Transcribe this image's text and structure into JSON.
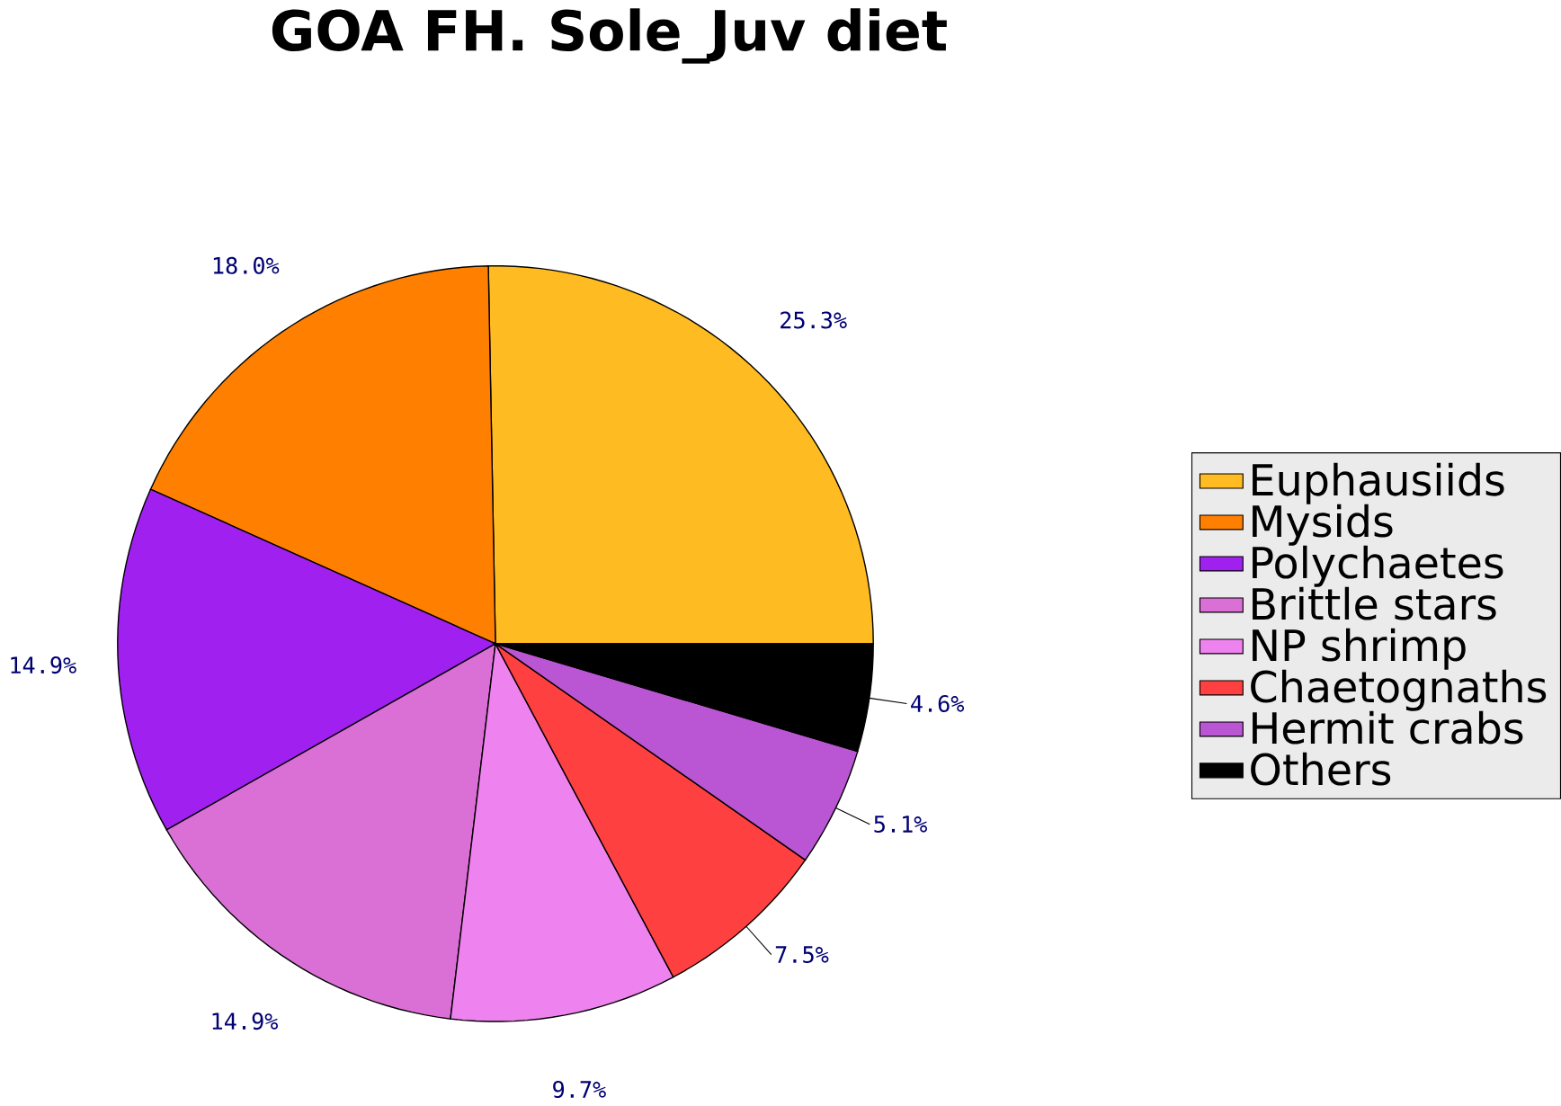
{
  "chart_data": {
    "type": "pie",
    "title": "GOA FH. Sole_Juv diet",
    "categories": [
      "Euphausiids",
      "Mysids",
      "Polychaetes",
      "Brittle stars",
      "NP shrimp",
      "Chaetognaths",
      "Hermit crabs",
      "Others"
    ],
    "values": [
      25.3,
      18.0,
      14.9,
      14.9,
      9.7,
      7.5,
      5.1,
      4.6
    ],
    "value_labels": [
      "25.3%",
      "18.0%",
      "14.9%",
      "14.9%",
      "9.7%",
      "7.5%",
      "5.1%",
      "4.6%"
    ],
    "colors": [
      "#ffbb22",
      "#ff8000",
      "#a020f0",
      "#da70d6",
      "#ee82ee",
      "#ff4040",
      "#ba55d3",
      "#000000"
    ],
    "legend": "right"
  }
}
